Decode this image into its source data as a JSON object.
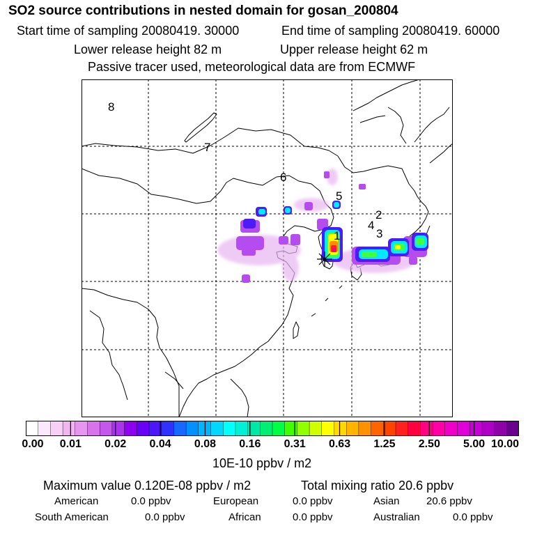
{
  "header": {
    "title": "SO2 source contributions in nested domain for gosan_200804",
    "start_time": "Start time of sampling 20080419. 30000",
    "end_time": "End time of sampling 20080419. 60000",
    "lower_release": "Lower release height   82 m",
    "upper_release": "Upper release height   62 m",
    "tracer_note": "Passive tracer used, meteorological data are from ECMWF"
  },
  "map": {
    "region_labels": [
      "1",
      "2",
      "3",
      "4",
      "5",
      "6",
      "7",
      "8"
    ],
    "receptor_marker": "asterisk-icon",
    "colors": {
      "coast": "#000000",
      "grid": "#000000"
    }
  },
  "colorbar": {
    "ticks": [
      "0.00",
      "0.01",
      "0.02",
      "0.04",
      "0.08",
      "0.16",
      "0.31",
      "0.63",
      "1.25",
      "2.50",
      "5.00",
      "10.00"
    ],
    "colors": [
      "#ffffff",
      "#fbe8fb",
      "#f6d0f6",
      "#f0b6f0",
      "#e696ee",
      "#d873ec",
      "#c458ee",
      "#aa33ee",
      "#8f00f2",
      "#6a00f6",
      "#4b16fa",
      "#3030ff",
      "#1668ff",
      "#0090ff",
      "#00b4ff",
      "#00d8ff",
      "#00ffff",
      "#00f0d8",
      "#00e8a8",
      "#00ee74",
      "#00ff44",
      "#40ff00",
      "#90ff00",
      "#d0ff00",
      "#ffff00",
      "#ffd800",
      "#ffb400",
      "#ff9000",
      "#ff6400",
      "#ff4400",
      "#ff2020",
      "#ff0040",
      "#ff0080",
      "#ff00a8",
      "#f000c8",
      "#e000d8",
      "#c800d8",
      "#b000c8",
      "#9000a8",
      "#6a0090"
    ],
    "unit": "10E-10 ppbv / m2"
  },
  "summary": {
    "max_label": "Maximum value  0.120E-08 ppbv / m2",
    "total_label": "Total mixing ratio       20.6 ppbv",
    "regions": [
      {
        "name": "American",
        "value": "0.0 ppbv"
      },
      {
        "name": "European",
        "value": "0.0 ppbv"
      },
      {
        "name": "Asian",
        "value": "20.6 ppbv"
      },
      {
        "name": "South American",
        "value": "0.0 ppbv"
      },
      {
        "name": "African",
        "value": "0.0 ppbv"
      },
      {
        "name": "Australian",
        "value": "0.0 ppbv"
      }
    ]
  }
}
